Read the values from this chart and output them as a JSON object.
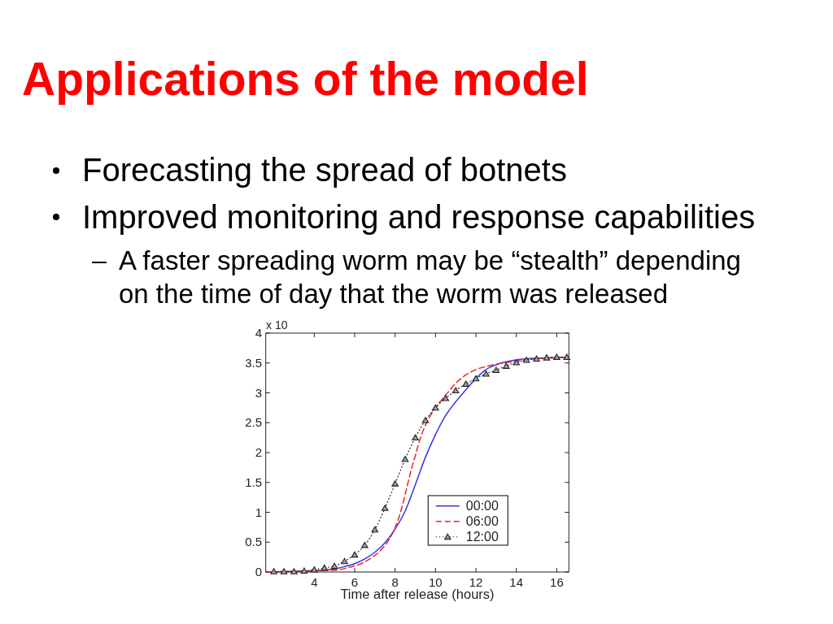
{
  "chart_data": {
    "type": "line",
    "title": "Applications of the model",
    "annotations": [
      "Forecasting the spread of botnets",
      "Improved monitoring and response capabilities",
      "A faster spreading worm may be “stealth” depending on the time of day that the worm was released",
      "x 10"
    ],
    "xlabel": "Time after release (hours)",
    "xlim": [
      1.6,
      16.6
    ],
    "xticks": [
      4,
      6,
      8,
      10,
      12,
      14,
      16
    ],
    "ylim": [
      0,
      4
    ],
    "yticks": [
      0,
      0.5,
      1,
      1.5,
      2,
      2.5,
      3,
      3.5,
      4
    ],
    "grid": false,
    "legend": "bottom right",
    "series": [
      {
        "name": "00:00",
        "color": "#3333ee",
        "line_style": "solid",
        "x": [
          1.6,
          3,
          4,
          5,
          5.5,
          6,
          6.5,
          7,
          7.5,
          8,
          8.5,
          9,
          9.5,
          10,
          10.5,
          11,
          11.5,
          12,
          12.5,
          13,
          13.5,
          14,
          15,
          16,
          16.6
        ],
        "values": [
          0,
          0.01,
          0.02,
          0.05,
          0.09,
          0.14,
          0.22,
          0.33,
          0.49,
          0.72,
          1.02,
          1.46,
          1.92,
          2.3,
          2.62,
          2.85,
          3.05,
          3.24,
          3.39,
          3.47,
          3.52,
          3.55,
          3.58,
          3.59,
          3.6
        ]
      },
      {
        "name": "06:00",
        "color": "#ee2222",
        "line_style": "dashed",
        "x": [
          1.75,
          3.25,
          4.25,
          5.25,
          5.75,
          6.25,
          6.75,
          7.25,
          7.75,
          8,
          8.25,
          8.5,
          8.75,
          9,
          9.25,
          9.5,
          9.75,
          10,
          10.5,
          11,
          11.5,
          12,
          12.5,
          13,
          14,
          15,
          16,
          16.6
        ],
        "values": [
          0,
          0.01,
          0.02,
          0.04,
          0.08,
          0.13,
          0.22,
          0.35,
          0.57,
          0.74,
          0.98,
          1.3,
          1.65,
          1.95,
          2.24,
          2.46,
          2.62,
          2.75,
          2.96,
          3.16,
          3.3,
          3.39,
          3.44,
          3.48,
          3.53,
          3.57,
          3.59,
          3.6
        ]
      },
      {
        "name": "12:00",
        "color": "#222222",
        "line_style": "dotted",
        "marker": "triangle",
        "x": [
          2,
          2.5,
          3,
          3.5,
          4,
          4.5,
          5,
          5.5,
          6,
          6.5,
          7,
          7.5,
          8,
          8.5,
          9,
          9.5,
          10,
          10.5,
          11,
          11.5,
          12,
          12.5,
          13,
          13.5,
          14,
          14.5,
          15,
          15.5,
          16,
          16.5
        ],
        "values": [
          0.01,
          0.01,
          0.01,
          0.02,
          0.04,
          0.07,
          0.1,
          0.18,
          0.29,
          0.45,
          0.71,
          1.07,
          1.48,
          1.89,
          2.25,
          2.54,
          2.75,
          2.91,
          3.04,
          3.15,
          3.24,
          3.32,
          3.38,
          3.45,
          3.51,
          3.55,
          3.57,
          3.59,
          3.6,
          3.6
        ]
      }
    ]
  }
}
